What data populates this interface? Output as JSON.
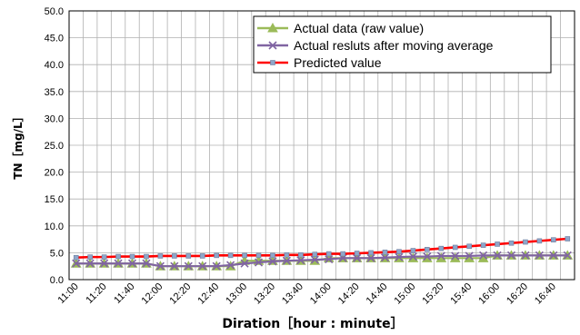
{
  "chart_data": {
    "type": "line",
    "xlabel": "Diration［hour : minute］",
    "ylabel": "TN［mg/L］",
    "ylim": [
      0,
      50
    ],
    "yticks": [
      "0.0",
      "5.0",
      "10.0",
      "15.0",
      "20.0",
      "25.0",
      "30.0",
      "35.0",
      "40.0",
      "45.0",
      "50.0"
    ],
    "x": [
      "11:00",
      "11:10",
      "11:20",
      "11:30",
      "11:40",
      "11:50",
      "12:00",
      "12:10",
      "12:20",
      "12:30",
      "12:40",
      "12:50",
      "13:00",
      "13:10",
      "13:20",
      "13:30",
      "13:40",
      "13:50",
      "14:00",
      "14:10",
      "14:20",
      "14:30",
      "14:40",
      "14:50",
      "15:00",
      "15:10",
      "15:20",
      "15:30",
      "15:40",
      "15:50",
      "16:00",
      "16:10",
      "16:20",
      "16:30",
      "16:40",
      "16:50"
    ],
    "xtick_labels": [
      "11:00",
      "11:20",
      "11:40",
      "12:00",
      "12:20",
      "12:40",
      "13:00",
      "13:20",
      "13:40",
      "14:00",
      "14:20",
      "14:40",
      "15:00",
      "15:20",
      "15:40",
      "16:00",
      "16:20",
      "16:40"
    ],
    "grid": true,
    "legend_position": "top-right",
    "series": [
      {
        "name": "Actual data (raw value)",
        "color": "#9bbb59",
        "marker": "triangle",
        "values": [
          3.0,
          3.0,
          3.0,
          3.0,
          3.0,
          3.0,
          2.5,
          2.5,
          2.5,
          2.5,
          2.5,
          2.5,
          3.5,
          3.5,
          3.5,
          3.5,
          3.5,
          3.5,
          4.0,
          4.0,
          4.0,
          4.0,
          4.0,
          4.0,
          4.0,
          4.0,
          4.0,
          4.0,
          4.0,
          4.0,
          4.5,
          4.5,
          4.5,
          4.5,
          4.5,
          4.5
        ]
      },
      {
        "name": "Actual resluts after moving average",
        "color": "#8064a2",
        "marker": "x",
        "values": [
          3.0,
          3.0,
          3.0,
          3.0,
          3.0,
          3.0,
          2.5,
          2.5,
          2.5,
          2.5,
          2.5,
          2.7,
          3.0,
          3.2,
          3.4,
          3.5,
          3.6,
          3.7,
          3.8,
          4.0,
          4.0,
          4.0,
          4.1,
          4.2,
          4.3,
          4.3,
          4.4,
          4.4,
          4.4,
          4.5,
          4.5,
          4.5,
          4.5,
          4.5,
          4.5,
          4.5
        ]
      },
      {
        "name": "Predicted value",
        "color": "#ff0000",
        "marker": "square",
        "values": [
          4.1,
          4.2,
          4.2,
          4.3,
          4.3,
          4.3,
          4.4,
          4.4,
          4.4,
          4.4,
          4.5,
          4.5,
          4.5,
          4.5,
          4.5,
          4.6,
          4.6,
          4.7,
          4.8,
          4.8,
          4.9,
          5.0,
          5.1,
          5.2,
          5.4,
          5.6,
          5.8,
          6.0,
          6.2,
          6.4,
          6.6,
          6.8,
          7.0,
          7.2,
          7.4,
          7.6
        ]
      }
    ]
  }
}
